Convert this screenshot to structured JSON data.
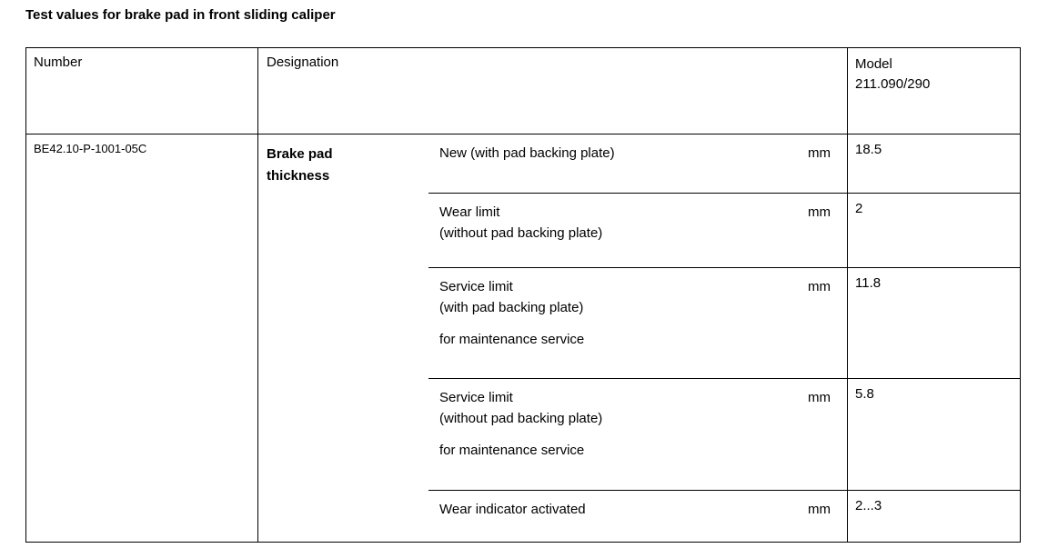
{
  "title": "Test values for brake pad in front sliding caliper",
  "table": {
    "header": {
      "number": "Number",
      "designation": "Designation",
      "model_line1": "Model",
      "model_line2": "211.090/290"
    },
    "row": {
      "number": "BE42.10-P-1001-05C",
      "designation_line1": "Brake pad",
      "designation_line2": "thickness",
      "tests": [
        {
          "lines": [
            "New (with pad backing plate)"
          ],
          "unit": "mm",
          "value": "18.5"
        },
        {
          "lines": [
            "Wear limit",
            "(without pad backing plate)"
          ],
          "unit": "mm",
          "value": "2"
        },
        {
          "lines": [
            "Service limit",
            "(with pad backing plate)"
          ],
          "note": "for maintenance service",
          "unit": "mm",
          "value": "11.8"
        },
        {
          "lines": [
            "Service limit",
            "(without pad backing plate)"
          ],
          "note": "for maintenance service",
          "unit": "mm",
          "value": "5.8"
        },
        {
          "lines": [
            "Wear indicator activated"
          ],
          "unit": "mm",
          "value": "2...3"
        }
      ]
    }
  }
}
